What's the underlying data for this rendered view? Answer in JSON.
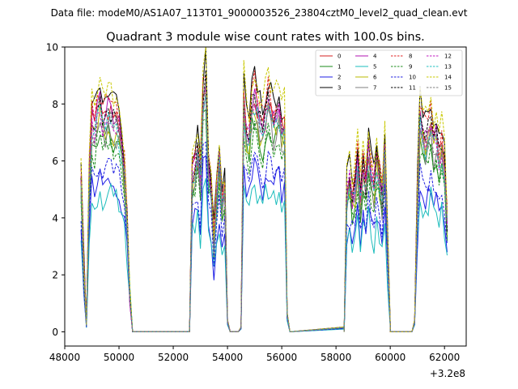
{
  "chart_data": {
    "type": "line",
    "suptitle": "Data file: modeM0/AS1A07_113T01_9000003526_23804cztM0_level2_quad_clean.evt",
    "title": "Quadrant 3 module wise count rates with 100.0s bins.",
    "xlabel": "",
    "ylabel": "",
    "x_offset_label": "+3.2e8",
    "x_offset": 320000000,
    "xlim": [
      48000,
      62800
    ],
    "ylim": [
      -0.5,
      10
    ],
    "xticks": [
      48000,
      50000,
      52000,
      54000,
      56000,
      58000,
      60000,
      62000
    ],
    "xtick_labels": [
      "48000",
      "50000",
      "52000",
      "54000",
      "56000",
      "58000",
      "60000",
      "62000"
    ],
    "yticks": [
      0,
      2,
      4,
      6,
      8,
      10
    ],
    "ytick_labels": [
      "0",
      "2",
      "4",
      "6",
      "8",
      "10"
    ],
    "bin_size": 100,
    "x_start": 48600,
    "legend_position": "upper right",
    "segments": [
      {
        "start": 48600,
        "end": 50500
      },
      {
        "start": 52600,
        "end": 54400
      },
      {
        "start": 54500,
        "end": 56300
      },
      {
        "start": 58300,
        "end": 60000
      },
      {
        "start": 60800,
        "end": 62100
      }
    ],
    "series": [
      {
        "name": "0",
        "color": "#d62020",
        "dashed": false,
        "level": 7.6
      },
      {
        "name": "1",
        "color": "#1a8a1a",
        "dashed": false,
        "level": 6.9
      },
      {
        "name": "2",
        "color": "#1f1fe6",
        "dashed": false,
        "level": 5.3
      },
      {
        "name": "3",
        "color": "#000000",
        "dashed": false,
        "level": 8.4
      },
      {
        "name": "4",
        "color": "#b013b0",
        "dashed": false,
        "level": 7.8
      },
      {
        "name": "5",
        "color": "#1bbcbc",
        "dashed": false,
        "level": 4.8
      },
      {
        "name": "6",
        "color": "#b8b800",
        "dashed": false,
        "level": 7.2
      },
      {
        "name": "7",
        "color": "#7f7f7f",
        "dashed": false,
        "level": 7.0
      },
      {
        "name": "8",
        "color": "#e02222",
        "dashed": true,
        "level": 8.1
      },
      {
        "name": "9",
        "color": "#1c8c1c",
        "dashed": true,
        "level": 6.6
      },
      {
        "name": "10",
        "color": "#2020e0",
        "dashed": true,
        "level": 5.7
      },
      {
        "name": "11",
        "color": "#000000",
        "dashed": true,
        "level": 7.7
      },
      {
        "name": "12",
        "color": "#c018c0",
        "dashed": true,
        "level": 7.5
      },
      {
        "name": "13",
        "color": "#20c0c0",
        "dashed": true,
        "level": 7.3
      },
      {
        "name": "14",
        "color": "#c8c800",
        "dashed": true,
        "level": 8.6
      },
      {
        "name": "15",
        "color": "#808080",
        "dashed": true,
        "level": 7.4
      }
    ],
    "shape_x": [
      48600,
      48700,
      48800,
      48900,
      49000,
      49100,
      49200,
      49300,
      49400,
      49500,
      49600,
      49700,
      49800,
      49900,
      50000,
      50100,
      50200,
      50300,
      50400,
      50500,
      52600,
      52700,
      52800,
      52900,
      53000,
      53100,
      53200,
      53300,
      53400,
      53500,
      53600,
      53700,
      53800,
      53900,
      54000,
      54100,
      54200,
      54300,
      54400,
      54500,
      54600,
      54700,
      54800,
      54900,
      55000,
      55100,
      55200,
      55300,
      55400,
      55500,
      55600,
      55700,
      55800,
      55900,
      56000,
      56100,
      56200,
      56300,
      58300,
      58400,
      58500,
      58600,
      58700,
      58800,
      58900,
      59000,
      59100,
      59200,
      59300,
      59400,
      59500,
      59600,
      59700,
      59800,
      59900,
      60000,
      60800,
      60900,
      61000,
      61100,
      61200,
      61300,
      61400,
      61500,
      61600,
      61700,
      61800,
      61900,
      62000,
      62100
    ],
    "shape": [
      0.76,
      0.3,
      0.03,
      0.68,
      0.96,
      0.93,
      1.0,
      1.04,
      0.97,
      0.98,
      1.02,
      0.99,
      0.96,
      0.98,
      0.93,
      0.85,
      0.74,
      0.52,
      0.18,
      0.0,
      0.0,
      0.72,
      0.76,
      0.82,
      0.7,
      1.08,
      1.15,
      0.76,
      0.66,
      0.42,
      0.62,
      0.78,
      0.62,
      0.66,
      0.05,
      0.0,
      0.0,
      0.0,
      0.0,
      0.02,
      1.06,
      0.92,
      0.9,
      1.03,
      1.08,
      1.02,
      0.96,
      0.93,
      1.0,
      1.06,
      1.02,
      0.96,
      0.99,
      1.03,
      0.93,
      0.95,
      0.08,
      0.0,
      0.02,
      0.64,
      0.7,
      0.61,
      0.66,
      0.78,
      0.6,
      0.74,
      0.67,
      0.84,
      0.72,
      0.66,
      0.79,
      0.71,
      0.62,
      0.84,
      0.4,
      0.03,
      0.0,
      0.05,
      0.62,
      0.98,
      0.93,
      0.88,
      0.91,
      0.97,
      0.87,
      0.9,
      0.8,
      0.86,
      0.76,
      0.5
    ],
    "floor_x": [
      50500,
      52600,
      54100,
      54400,
      56300,
      58300,
      60000,
      60200,
      60800
    ],
    "floor_values": [
      0,
      0,
      0,
      0,
      0,
      0,
      0,
      0,
      0
    ]
  }
}
